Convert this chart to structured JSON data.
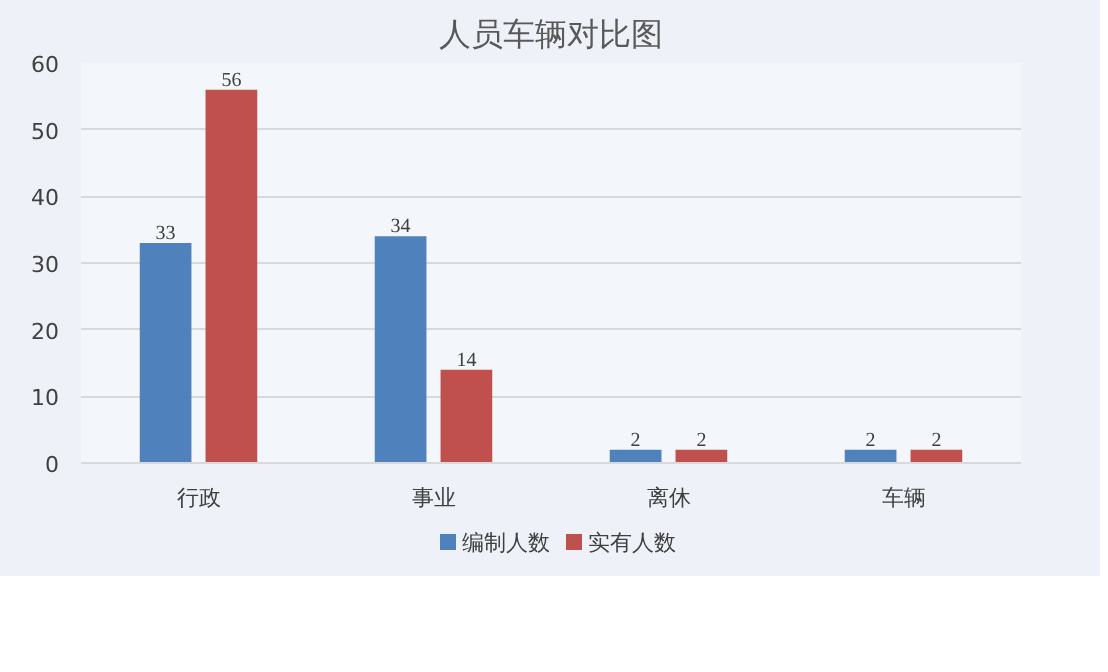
{
  "chart_data": {
    "type": "bar",
    "title": "人员车辆对比图",
    "categories": [
      "行政",
      "事业",
      "离休",
      "车辆"
    ],
    "series": [
      {
        "name": "编制人数",
        "color": "#4f81bd",
        "values": [
          33,
          34,
          2,
          2
        ]
      },
      {
        "name": "实有人数",
        "color": "#c0504d",
        "values": [
          56,
          14,
          2,
          2
        ]
      }
    ],
    "ylim": [
      0,
      60
    ],
    "yticks": [
      0,
      10,
      20,
      30,
      40,
      50,
      60
    ],
    "grid": "y",
    "legend": "bottom",
    "data_labels": true
  }
}
